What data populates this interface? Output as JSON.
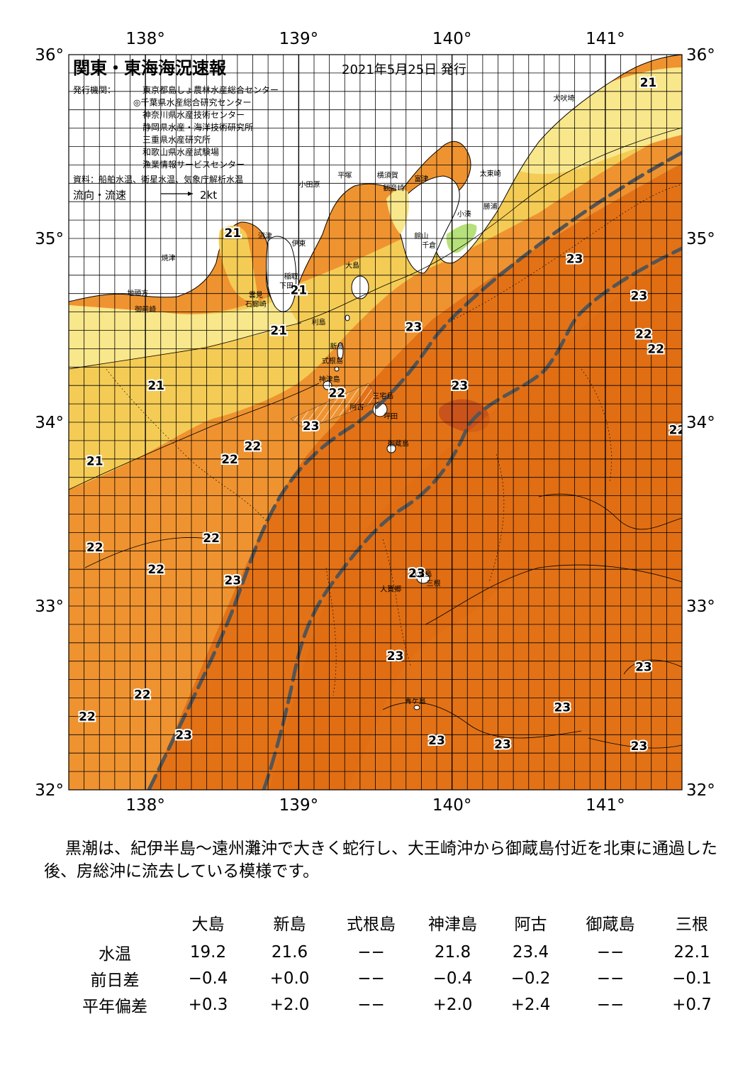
{
  "map": {
    "title": "関東・東海海況速報",
    "issue_date": "2021年5月25日 発行",
    "publisher_label": "発行機関：",
    "publishers": [
      "東京都島しょ農林水産総合センター",
      "◎千葉県水産総合研究センター",
      "神奈川県水産技術センター",
      "静岡県水産・海洋技術研究所",
      "三重県水産研究所",
      "和歌山県水産試験場",
      "漁業情報サービスセンター"
    ],
    "source": "資料：船舶水温、衛星水温、気象庁解析水温",
    "current_legend_label": "流向・流速",
    "current_legend_value": "2kt",
    "lon_labels": [
      "138°",
      "139°",
      "140°",
      "141°"
    ],
    "lat_labels": [
      "36°",
      "35°",
      "34°",
      "33°",
      "32°"
    ],
    "lon_range": [
      137.5,
      141.5
    ],
    "lat_range": [
      32,
      36
    ],
    "colors": {
      "land": "#ffffff",
      "sst_19_20": "#f9e78c",
      "sst_21": "#f4cc55",
      "sst_22": "#ef9330",
      "sst_23": "#e37216",
      "sst_24": "#c9531a",
      "cold_land_hint": "#b6e07a",
      "kuroshio": "#555555"
    },
    "isotherm_labels": [
      {
        "text": "21",
        "lon": 141.28,
        "lat": 35.85
      },
      {
        "text": "21",
        "lon": 138.57,
        "lat": 35.03
      },
      {
        "text": "21",
        "lon": 139.0,
        "lat": 34.72
      },
      {
        "text": "21",
        "lon": 138.87,
        "lat": 34.5
      },
      {
        "text": "21",
        "lon": 138.07,
        "lat": 34.2
      },
      {
        "text": "21",
        "lon": 137.67,
        "lat": 33.79
      },
      {
        "text": "22",
        "lon": 139.25,
        "lat": 34.16
      },
      {
        "text": "22",
        "lon": 138.7,
        "lat": 33.87
      },
      {
        "text": "22",
        "lon": 138.55,
        "lat": 33.8
      },
      {
        "text": "22",
        "lon": 137.67,
        "lat": 33.32
      },
      {
        "text": "22",
        "lon": 138.43,
        "lat": 33.37
      },
      {
        "text": "22",
        "lon": 138.07,
        "lat": 33.2
      },
      {
        "text": "22",
        "lon": 137.98,
        "lat": 32.52
      },
      {
        "text": "22",
        "lon": 137.62,
        "lat": 32.4
      },
      {
        "text": "22",
        "lon": 141.25,
        "lat": 34.48
      },
      {
        "text": "22",
        "lon": 141.33,
        "lat": 34.4
      },
      {
        "text": "22",
        "lon": 141.47,
        "lat": 33.96
      },
      {
        "text": "23",
        "lon": 140.8,
        "lat": 34.89
      },
      {
        "text": "23",
        "lon": 141.22,
        "lat": 34.69
      },
      {
        "text": "23",
        "lon": 139.75,
        "lat": 34.52
      },
      {
        "text": "23",
        "lon": 140.05,
        "lat": 34.2
      },
      {
        "text": "23",
        "lon": 139.08,
        "lat": 33.98
      },
      {
        "text": "23",
        "lon": 138.57,
        "lat": 33.14
      },
      {
        "text": "23",
        "lon": 139.77,
        "lat": 33.18
      },
      {
        "text": "23",
        "lon": 139.63,
        "lat": 32.73
      },
      {
        "text": "23",
        "lon": 141.25,
        "lat": 32.67
      },
      {
        "text": "23",
        "lon": 140.72,
        "lat": 32.45
      },
      {
        "text": "23",
        "lon": 138.25,
        "lat": 32.3
      },
      {
        "text": "23",
        "lon": 139.9,
        "lat": 32.27
      },
      {
        "text": "23",
        "lon": 140.33,
        "lat": 32.25
      },
      {
        "text": "23",
        "lon": 141.22,
        "lat": 32.24
      }
    ],
    "places": [
      {
        "text": "犬吠埼",
        "lon": 140.73,
        "lat": 35.75
      },
      {
        "text": "太東崎",
        "lon": 140.25,
        "lat": 35.34
      },
      {
        "text": "勝浦",
        "lon": 140.25,
        "lat": 35.16
      },
      {
        "text": "小湊",
        "lon": 140.08,
        "lat": 35.12
      },
      {
        "text": "富津",
        "lon": 139.8,
        "lat": 35.31
      },
      {
        "text": "館山",
        "lon": 139.8,
        "lat": 35.0
      },
      {
        "text": "千倉",
        "lon": 139.85,
        "lat": 34.95
      },
      {
        "text": "横須賀",
        "lon": 139.58,
        "lat": 35.33
      },
      {
        "text": "観音崎",
        "lon": 139.62,
        "lat": 35.26
      },
      {
        "text": "平塚",
        "lon": 139.3,
        "lat": 35.33
      },
      {
        "text": "小田原",
        "lon": 139.07,
        "lat": 35.28
      },
      {
        "text": "沼津",
        "lon": 138.78,
        "lat": 35.0
      },
      {
        "text": "伊東",
        "lon": 139.0,
        "lat": 34.96
      },
      {
        "text": "大島",
        "lon": 139.35,
        "lat": 34.84
      },
      {
        "text": "稲取",
        "lon": 138.95,
        "lat": 34.78
      },
      {
        "text": "下田",
        "lon": 138.92,
        "lat": 34.73
      },
      {
        "text": "焼津",
        "lon": 138.15,
        "lat": 34.88
      },
      {
        "text": "地頭方",
        "lon": 137.95,
        "lat": 34.69
      },
      {
        "text": "御前崎",
        "lon": 138.0,
        "lat": 34.6
      },
      {
        "text": "雲見",
        "lon": 138.72,
        "lat": 34.68
      },
      {
        "text": "石廊崎",
        "lon": 138.72,
        "lat": 34.63
      },
      {
        "text": "利島",
        "lon": 139.13,
        "lat": 34.53
      },
      {
        "text": "新島",
        "lon": 139.25,
        "lat": 34.4
      },
      {
        "text": "式根島",
        "lon": 139.22,
        "lat": 34.32
      },
      {
        "text": "神津島",
        "lon": 139.2,
        "lat": 34.22
      },
      {
        "text": "三宅島",
        "lon": 139.55,
        "lat": 34.13
      },
      {
        "text": "阿古",
        "lon": 139.38,
        "lat": 34.07
      },
      {
        "text": "坪田",
        "lon": 139.6,
        "lat": 34.02
      },
      {
        "text": "御蔵島",
        "lon": 139.65,
        "lat": 33.87
      },
      {
        "text": "八丈島",
        "lon": 139.8,
        "lat": 33.16
      },
      {
        "text": "三根",
        "lon": 139.88,
        "lat": 33.11
      },
      {
        "text": "大賀郷",
        "lon": 139.6,
        "lat": 33.08
      },
      {
        "text": "青ケ島",
        "lon": 139.76,
        "lat": 32.47
      }
    ]
  },
  "description": "黒潮は、紀伊半島～遠州灘沖で大きく蛇行し、大王崎沖から御蔵島付近を北東に通過した後、房総沖に流去している模様です。",
  "table": {
    "columns": [
      "大島",
      "新島",
      "式根島",
      "神津島",
      "阿古",
      "御蔵島",
      "三根"
    ],
    "rows": [
      {
        "label": "水温",
        "values": [
          "19.2",
          "21.6",
          "−−",
          "21.8",
          "23.4",
          "−−",
          "22.1"
        ]
      },
      {
        "label": "前日差",
        "values": [
          "−0.4",
          "+0.0",
          "−−",
          "−0.4",
          "−0.2",
          "−−",
          "−0.1"
        ]
      },
      {
        "label": "平年偏差",
        "values": [
          "+0.3",
          "+2.0",
          "−−",
          "+2.0",
          "+2.4",
          "−−",
          "+0.7"
        ]
      }
    ]
  }
}
